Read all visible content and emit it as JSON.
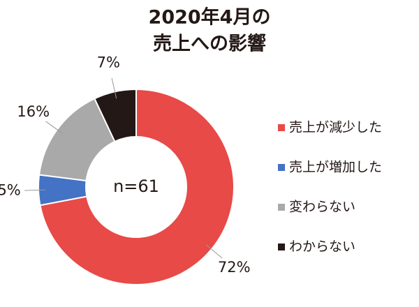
{
  "chart_data": {
    "type": "donut",
    "title": [
      "2020年4月の",
      "売上への影響"
    ],
    "annotation": "n=61",
    "categories": [
      "売上が減少した",
      "売上が増加した",
      "変わらない",
      "わからない"
    ],
    "values": [
      72,
      5,
      16,
      7
    ],
    "value_labels": [
      "72%",
      "5%",
      "16%",
      "7%"
    ],
    "colors": [
      "#e84a47",
      "#4472c4",
      "#a9a9a9",
      "#231815"
    ],
    "legend": "right"
  }
}
